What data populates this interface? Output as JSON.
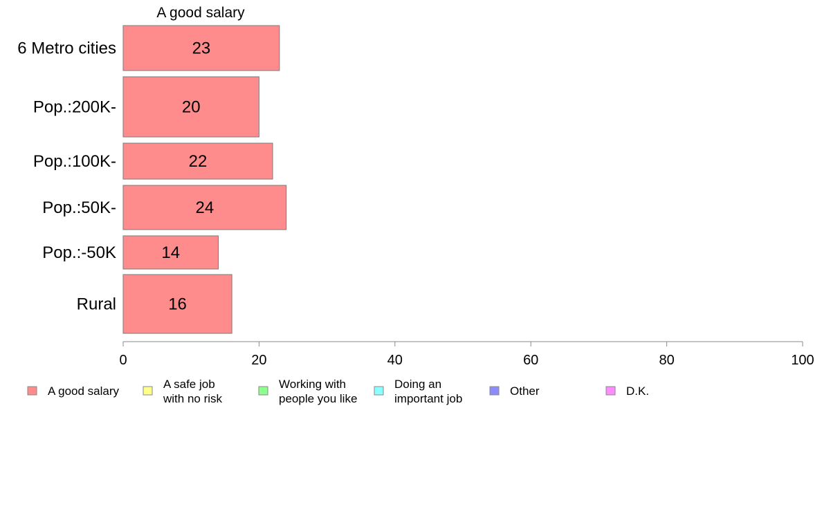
{
  "chart_data": {
    "type": "bar",
    "orientation": "horizontal",
    "title": "A good salary",
    "categories": [
      "6 Metro cities",
      "Pop.:200K-",
      "Pop.:100K-",
      "Pop.:50K-",
      "Pop.:-50K",
      "Rural"
    ],
    "series": [
      {
        "name": "A good salary",
        "values": [
          23,
          20,
          22,
          24,
          14,
          16
        ],
        "color": "#ff8c8c"
      }
    ],
    "xlim": [
      0,
      100
    ],
    "xticks": [
      0,
      20,
      40,
      60,
      80,
      100
    ],
    "grid": false,
    "legend_position": "bottom",
    "legend": [
      {
        "lines": [
          "A good salary"
        ],
        "color": "#ff8c8c"
      },
      {
        "lines": [
          "A safe job",
          "with no risk"
        ],
        "color": "#ffff8c"
      },
      {
        "lines": [
          "Working with",
          "people you like"
        ],
        "color": "#8cff8c"
      },
      {
        "lines": [
          "Doing an",
          "important job"
        ],
        "color": "#8cffff"
      },
      {
        "lines": [
          "Other"
        ],
        "color": "#8c8cff"
      },
      {
        "lines": [
          "D.K."
        ],
        "color": "#ff8cff"
      }
    ]
  }
}
